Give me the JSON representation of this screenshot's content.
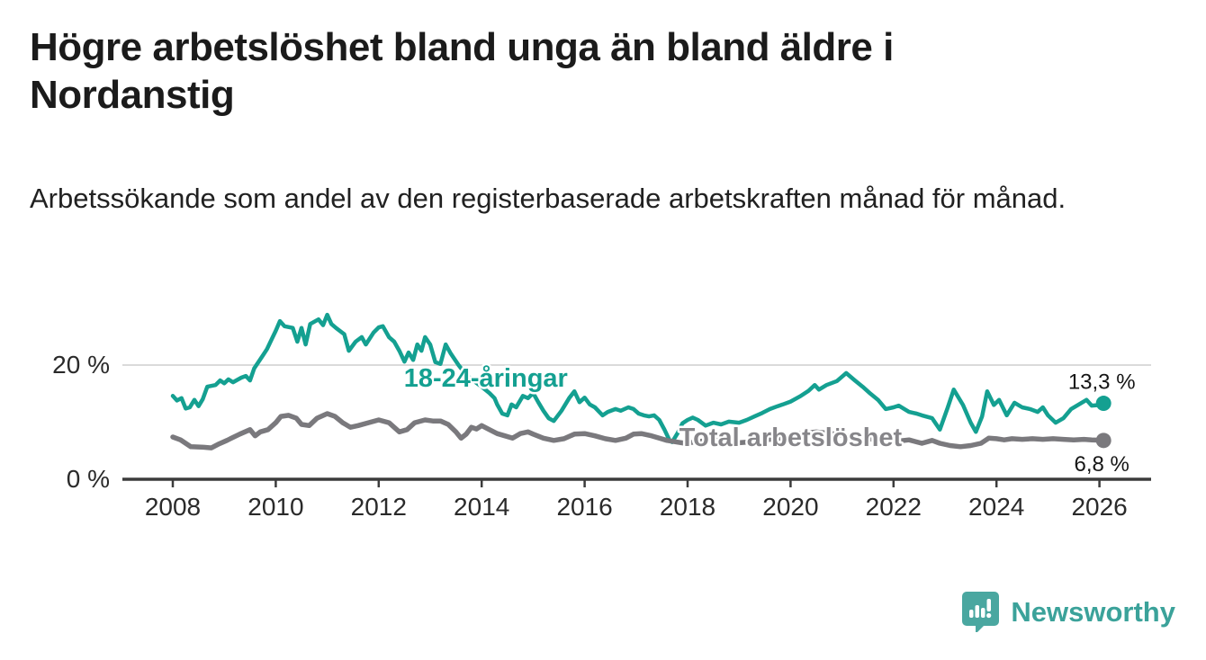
{
  "header": {
    "title": "Högre arbetslöshet bland unga än bland äldre i Nordanstig",
    "subtitle": "Arbetssökande som andel av den registerbaserade arbetskraften månad för månad."
  },
  "footer": {
    "brand_name": "Newsworthy",
    "brand_icon": "chart-speech-bubble-icon",
    "brand_color": "#4aa7a0",
    "brand_text_color": "#3ba29a"
  },
  "colors": {
    "young_line": "#14a091",
    "total_line": "#7a797d",
    "total_label": "#87868a",
    "grid": "#dadada",
    "axis": "#3c3c3c",
    "axis_text": "#2a2a2a",
    "value_text": "#161616",
    "background": "#ffffff"
  },
  "chart_data": {
    "type": "line",
    "title": "Högre arbetslöshet bland unga än bland äldre i Nordanstig",
    "ylabel": "",
    "xlabel": "",
    "x_ticks": [
      2008,
      2010,
      2012,
      2014,
      2016,
      2018,
      2020,
      2022,
      2024,
      2026
    ],
    "y_ticks": [
      {
        "value": 0,
        "label": "0 %"
      },
      {
        "value": 20,
        "label": "20 %"
      }
    ],
    "grid_values": [
      20
    ],
    "y_range": [
      0,
      32
    ],
    "x_range": [
      2007.0,
      2027.0
    ],
    "legend_position": "inline-labels",
    "series": [
      {
        "name": "18-24-åringar",
        "color": "#14a091",
        "end_label": "13,3 %",
        "end_value": 13.3,
        "points": [
          [
            2008.0,
            14.6
          ],
          [
            2008.08,
            13.8
          ],
          [
            2008.17,
            14.2
          ],
          [
            2008.25,
            12.4
          ],
          [
            2008.33,
            12.6
          ],
          [
            2008.42,
            13.9
          ],
          [
            2008.5,
            12.8
          ],
          [
            2008.58,
            14.0
          ],
          [
            2008.67,
            16.2
          ],
          [
            2008.83,
            16.5
          ],
          [
            2008.92,
            17.3
          ],
          [
            2009.0,
            16.8
          ],
          [
            2009.08,
            17.5
          ],
          [
            2009.17,
            17.0
          ],
          [
            2009.33,
            17.8
          ],
          [
            2009.42,
            18.1
          ],
          [
            2009.5,
            17.3
          ],
          [
            2009.58,
            19.4
          ],
          [
            2009.75,
            21.7
          ],
          [
            2009.83,
            22.8
          ],
          [
            2009.92,
            24.5
          ],
          [
            2010.0,
            26.0
          ],
          [
            2010.08,
            27.7
          ],
          [
            2010.17,
            26.8
          ],
          [
            2010.33,
            26.5
          ],
          [
            2010.42,
            24.1
          ],
          [
            2010.5,
            26.5
          ],
          [
            2010.58,
            23.6
          ],
          [
            2010.67,
            27.2
          ],
          [
            2010.83,
            28.0
          ],
          [
            2010.92,
            27.0
          ],
          [
            2011.0,
            28.8
          ],
          [
            2011.08,
            27.2
          ],
          [
            2011.17,
            26.5
          ],
          [
            2011.33,
            25.4
          ],
          [
            2011.42,
            22.5
          ],
          [
            2011.55,
            24.1
          ],
          [
            2011.67,
            24.9
          ],
          [
            2011.75,
            23.6
          ],
          [
            2011.9,
            25.7
          ],
          [
            2012.0,
            26.6
          ],
          [
            2012.08,
            26.8
          ],
          [
            2012.2,
            24.9
          ],
          [
            2012.3,
            24.1
          ],
          [
            2012.4,
            22.5
          ],
          [
            2012.5,
            20.6
          ],
          [
            2012.58,
            22.2
          ],
          [
            2012.67,
            20.9
          ],
          [
            2012.75,
            23.6
          ],
          [
            2012.83,
            22.5
          ],
          [
            2012.9,
            24.9
          ],
          [
            2013.0,
            23.6
          ],
          [
            2013.1,
            20.5
          ],
          [
            2013.2,
            20.2
          ],
          [
            2013.3,
            23.6
          ],
          [
            2013.4,
            22.0
          ],
          [
            2013.55,
            20.0
          ],
          [
            2013.7,
            18.3
          ],
          [
            2013.85,
            17.2
          ],
          [
            2014.0,
            16.2
          ],
          [
            2014.15,
            15.1
          ],
          [
            2014.25,
            14.2
          ],
          [
            2014.3,
            13.1
          ],
          [
            2014.4,
            11.5
          ],
          [
            2014.5,
            11.2
          ],
          [
            2014.58,
            13.1
          ],
          [
            2014.67,
            12.6
          ],
          [
            2014.8,
            14.6
          ],
          [
            2014.9,
            14.2
          ],
          [
            2015.0,
            15.1
          ],
          [
            2015.1,
            13.5
          ],
          [
            2015.2,
            12.0
          ],
          [
            2015.3,
            10.7
          ],
          [
            2015.4,
            10.2
          ],
          [
            2015.55,
            12.0
          ],
          [
            2015.7,
            14.2
          ],
          [
            2015.8,
            15.4
          ],
          [
            2015.9,
            13.5
          ],
          [
            2016.0,
            14.3
          ],
          [
            2016.1,
            13.1
          ],
          [
            2016.2,
            12.6
          ],
          [
            2016.35,
            11.2
          ],
          [
            2016.45,
            11.8
          ],
          [
            2016.6,
            12.3
          ],
          [
            2016.7,
            12.0
          ],
          [
            2016.85,
            12.6
          ],
          [
            2016.95,
            12.3
          ],
          [
            2017.05,
            11.5
          ],
          [
            2017.15,
            11.2
          ],
          [
            2017.25,
            11.0
          ],
          [
            2017.35,
            11.2
          ],
          [
            2017.45,
            10.4
          ],
          [
            2017.55,
            8.7
          ],
          [
            2017.65,
            6.8
          ],
          [
            2017.7,
            6.5
          ],
          [
            2017.8,
            8.0
          ],
          [
            2017.9,
            9.8
          ],
          [
            2018.0,
            10.4
          ],
          [
            2018.1,
            10.8
          ],
          [
            2018.2,
            10.4
          ],
          [
            2018.35,
            9.4
          ],
          [
            2018.5,
            9.9
          ],
          [
            2018.65,
            9.6
          ],
          [
            2018.8,
            10.1
          ],
          [
            2019.0,
            9.9
          ],
          [
            2019.15,
            10.4
          ],
          [
            2019.3,
            11.0
          ],
          [
            2019.45,
            11.6
          ],
          [
            2019.6,
            12.3
          ],
          [
            2019.75,
            12.8
          ],
          [
            2019.85,
            13.1
          ],
          [
            2020.0,
            13.6
          ],
          [
            2020.2,
            14.6
          ],
          [
            2020.35,
            15.5
          ],
          [
            2020.47,
            16.5
          ],
          [
            2020.55,
            15.7
          ],
          [
            2020.7,
            16.5
          ],
          [
            2020.9,
            17.2
          ],
          [
            2021.08,
            18.6
          ],
          [
            2021.25,
            17.3
          ],
          [
            2021.4,
            16.2
          ],
          [
            2021.55,
            15.0
          ],
          [
            2021.7,
            13.9
          ],
          [
            2021.85,
            12.3
          ],
          [
            2022.0,
            12.6
          ],
          [
            2022.1,
            12.9
          ],
          [
            2022.3,
            11.8
          ],
          [
            2022.45,
            11.5
          ],
          [
            2022.55,
            11.2
          ],
          [
            2022.75,
            10.7
          ],
          [
            2022.9,
            8.7
          ],
          [
            2023.05,
            12.5
          ],
          [
            2023.17,
            15.7
          ],
          [
            2023.35,
            13.0
          ],
          [
            2023.5,
            9.9
          ],
          [
            2023.6,
            8.3
          ],
          [
            2023.72,
            11.0
          ],
          [
            2023.82,
            15.4
          ],
          [
            2023.95,
            13.0
          ],
          [
            2024.05,
            13.9
          ],
          [
            2024.2,
            11.2
          ],
          [
            2024.35,
            13.4
          ],
          [
            2024.5,
            12.6
          ],
          [
            2024.65,
            12.3
          ],
          [
            2024.8,
            11.8
          ],
          [
            2024.9,
            12.6
          ],
          [
            2025.0,
            11.2
          ],
          [
            2025.15,
            9.9
          ],
          [
            2025.3,
            10.7
          ],
          [
            2025.45,
            12.3
          ],
          [
            2025.6,
            13.1
          ],
          [
            2025.75,
            13.9
          ],
          [
            2025.85,
            12.9
          ],
          [
            2026.0,
            13.0
          ],
          [
            2026.08,
            13.3
          ]
        ]
      },
      {
        "name": "Total arbetslöshet",
        "color": "#7a797d",
        "end_label": "6,8 %",
        "end_value": 6.8,
        "points": [
          [
            2008.0,
            7.4
          ],
          [
            2008.15,
            6.9
          ],
          [
            2008.35,
            5.7
          ],
          [
            2008.6,
            5.6
          ],
          [
            2008.75,
            5.5
          ],
          [
            2008.9,
            6.2
          ],
          [
            2009.05,
            6.8
          ],
          [
            2009.3,
            7.9
          ],
          [
            2009.5,
            8.7
          ],
          [
            2009.6,
            7.6
          ],
          [
            2009.7,
            8.3
          ],
          [
            2009.85,
            8.7
          ],
          [
            2010.0,
            9.9
          ],
          [
            2010.1,
            11.0
          ],
          [
            2010.25,
            11.2
          ],
          [
            2010.4,
            10.7
          ],
          [
            2010.5,
            9.6
          ],
          [
            2010.65,
            9.4
          ],
          [
            2010.8,
            10.7
          ],
          [
            2011.0,
            11.5
          ],
          [
            2011.15,
            11.0
          ],
          [
            2011.3,
            9.9
          ],
          [
            2011.45,
            9.1
          ],
          [
            2011.6,
            9.4
          ],
          [
            2011.8,
            9.9
          ],
          [
            2012.0,
            10.4
          ],
          [
            2012.2,
            9.9
          ],
          [
            2012.4,
            8.3
          ],
          [
            2012.55,
            8.7
          ],
          [
            2012.7,
            9.9
          ],
          [
            2012.9,
            10.4
          ],
          [
            2013.05,
            10.2
          ],
          [
            2013.2,
            10.2
          ],
          [
            2013.35,
            9.6
          ],
          [
            2013.5,
            8.3
          ],
          [
            2013.6,
            7.2
          ],
          [
            2013.7,
            7.9
          ],
          [
            2013.8,
            9.1
          ],
          [
            2013.9,
            8.8
          ],
          [
            2014.0,
            9.4
          ],
          [
            2014.15,
            8.7
          ],
          [
            2014.3,
            8.0
          ],
          [
            2014.45,
            7.6
          ],
          [
            2014.6,
            7.2
          ],
          [
            2014.75,
            8.0
          ],
          [
            2014.9,
            8.3
          ],
          [
            2015.0,
            7.9
          ],
          [
            2015.2,
            7.2
          ],
          [
            2015.4,
            6.8
          ],
          [
            2015.6,
            7.1
          ],
          [
            2015.8,
            7.9
          ],
          [
            2016.0,
            8.0
          ],
          [
            2016.2,
            7.6
          ],
          [
            2016.4,
            7.1
          ],
          [
            2016.6,
            6.8
          ],
          [
            2016.8,
            7.2
          ],
          [
            2016.95,
            7.9
          ],
          [
            2017.1,
            8.0
          ],
          [
            2017.3,
            7.6
          ],
          [
            2017.45,
            7.2
          ],
          [
            2017.6,
            6.8
          ],
          [
            2017.8,
            6.5
          ],
          [
            2017.95,
            6.3
          ],
          [
            2018.2,
            6.6
          ],
          [
            2018.5,
            6.9
          ],
          [
            2018.8,
            6.6
          ],
          [
            2019.0,
            6.4
          ],
          [
            2019.3,
            6.6
          ],
          [
            2019.6,
            7.0
          ],
          [
            2019.9,
            7.3
          ],
          [
            2020.2,
            8.0
          ],
          [
            2020.5,
            8.3
          ],
          [
            2020.8,
            8.0
          ],
          [
            2021.1,
            7.6
          ],
          [
            2021.4,
            7.2
          ],
          [
            2021.7,
            6.9
          ],
          [
            2022.0,
            6.6
          ],
          [
            2022.3,
            6.9
          ],
          [
            2022.55,
            6.3
          ],
          [
            2022.75,
            6.8
          ],
          [
            2022.9,
            6.3
          ],
          [
            2023.1,
            5.9
          ],
          [
            2023.3,
            5.7
          ],
          [
            2023.5,
            5.9
          ],
          [
            2023.7,
            6.3
          ],
          [
            2023.85,
            7.2
          ],
          [
            2024.0,
            7.1
          ],
          [
            2024.15,
            6.9
          ],
          [
            2024.3,
            7.1
          ],
          [
            2024.5,
            7.0
          ],
          [
            2024.7,
            7.1
          ],
          [
            2024.9,
            7.0
          ],
          [
            2025.1,
            7.1
          ],
          [
            2025.3,
            7.0
          ],
          [
            2025.5,
            6.9
          ],
          [
            2025.7,
            7.0
          ],
          [
            2025.85,
            6.9
          ],
          [
            2026.08,
            6.8
          ]
        ]
      }
    ]
  }
}
